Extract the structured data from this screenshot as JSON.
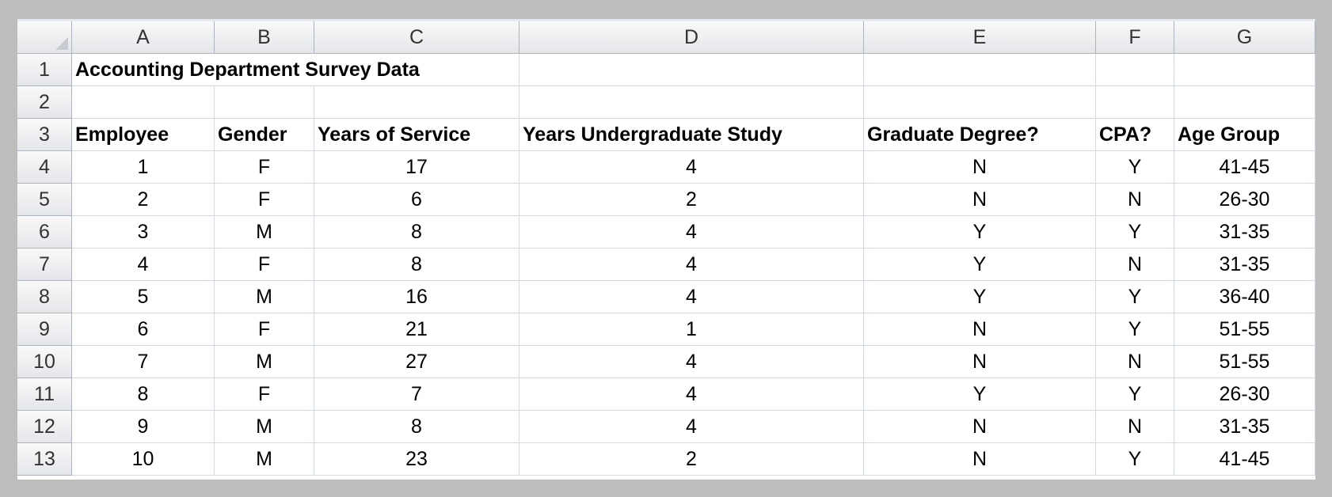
{
  "columns": [
    "A",
    "B",
    "C",
    "D",
    "E",
    "F",
    "G"
  ],
  "row_numbers": [
    1,
    2,
    3,
    4,
    5,
    6,
    7,
    8,
    9,
    10,
    11,
    12,
    13
  ],
  "title": "Accounting Department Survey Data",
  "header": [
    "Employee",
    "Gender",
    "Years of Service",
    "Years Undergraduate Study",
    "Graduate Degree?",
    "CPA?",
    "Age Group"
  ],
  "rows": [
    [
      1,
      "F",
      17,
      4,
      "N",
      "Y",
      "41-45"
    ],
    [
      2,
      "F",
      6,
      2,
      "N",
      "N",
      "26-30"
    ],
    [
      3,
      "M",
      8,
      4,
      "Y",
      "Y",
      "31-35"
    ],
    [
      4,
      "F",
      8,
      4,
      "Y",
      "N",
      "31-35"
    ],
    [
      5,
      "M",
      16,
      4,
      "Y",
      "Y",
      "36-40"
    ],
    [
      6,
      "F",
      21,
      1,
      "N",
      "Y",
      "51-55"
    ],
    [
      7,
      "M",
      27,
      4,
      "N",
      "N",
      "51-55"
    ],
    [
      8,
      "F",
      7,
      4,
      "Y",
      "Y",
      "26-30"
    ],
    [
      9,
      "M",
      8,
      4,
      "N",
      "N",
      "31-35"
    ],
    [
      10,
      "M",
      23,
      2,
      "N",
      "Y",
      "41-45"
    ]
  ]
}
